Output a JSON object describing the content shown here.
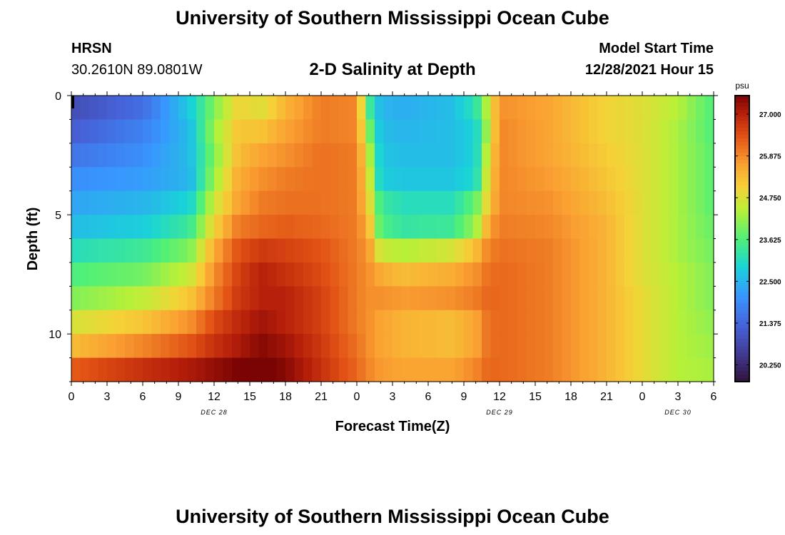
{
  "page": {
    "title": "University of Southern Mississippi Ocean Cube",
    "title_repeat": "University of Southern Mississippi Ocean Cube",
    "station_name": "HRSN",
    "station_coords": "30.2610N  89.0801W",
    "subtitle": "2-D Salinity at Depth",
    "model_start_label": "Model Start Time",
    "model_start_value": "12/28/2021 Hour 15"
  },
  "chart_data": {
    "type": "heatmap",
    "title": "2-D Salinity at Depth",
    "xlabel": "Forecast Time(Z)",
    "ylabel": "Depth (ft)",
    "x_ticks": [
      "0",
      "3",
      "6",
      "9",
      "12",
      "15",
      "18",
      "21",
      "0",
      "3",
      "6",
      "9",
      "12",
      "15",
      "18",
      "21",
      "0",
      "3",
      "6"
    ],
    "x_hours": [
      0,
      3,
      6,
      9,
      12,
      15,
      18,
      21,
      24,
      27,
      30,
      33,
      36,
      39,
      42,
      45,
      48,
      51,
      54
    ],
    "x_range_hours": [
      0,
      54
    ],
    "date_labels": [
      {
        "text": "DEC 28",
        "hour": 12
      },
      {
        "text": "DEC 29",
        "hour": 36
      },
      {
        "text": "DEC 30",
        "hour": 51
      }
    ],
    "y_ticks": [
      0,
      5,
      10
    ],
    "y_range_ft": [
      0,
      12
    ],
    "depth_levels_ft": [
      0.5,
      1.5,
      2.5,
      3.5,
      4.5,
      5.5,
      6.5,
      7.5,
      8.5,
      9.5,
      10.5,
      11.5
    ],
    "colorbar": {
      "unit": "psu",
      "ticks": [
        "27.000",
        "25.875",
        "24.750",
        "23.625",
        "22.500",
        "21.375",
        "20.250"
      ],
      "range": [
        19.8,
        27.5
      ]
    },
    "keyframes": {
      "hours": [
        0,
        6,
        10,
        12,
        14,
        16,
        18,
        21,
        24,
        25,
        26,
        28,
        32,
        34,
        35,
        36,
        40,
        45,
        48,
        51,
        54
      ],
      "rows": [
        [
          20.9,
          21.5,
          22.8,
          24.0,
          25.0,
          24.8,
          25.4,
          26.0,
          25.9,
          23.5,
          22.5,
          22.4,
          22.6,
          23.2,
          24.5,
          25.8,
          25.6,
          25.0,
          24.8,
          24.4,
          23.6
        ],
        [
          21.2,
          21.8,
          22.6,
          24.2,
          25.2,
          25.2,
          25.6,
          26.0,
          25.9,
          24.0,
          22.6,
          22.5,
          22.6,
          22.9,
          24.3,
          25.9,
          25.6,
          25.0,
          24.8,
          24.3,
          23.6
        ],
        [
          21.6,
          22.0,
          22.6,
          24.0,
          25.3,
          25.6,
          25.8,
          26.1,
          26.0,
          24.5,
          22.7,
          22.6,
          22.6,
          22.9,
          24.6,
          25.9,
          25.6,
          25.1,
          24.8,
          24.3,
          23.7
        ],
        [
          22.0,
          22.2,
          22.5,
          24.2,
          25.5,
          25.8,
          26.0,
          26.1,
          26.0,
          24.8,
          22.8,
          22.7,
          22.7,
          23.0,
          24.8,
          25.9,
          25.7,
          25.2,
          24.8,
          24.3,
          23.7
        ],
        [
          22.3,
          22.5,
          22.9,
          24.6,
          25.6,
          26.0,
          26.1,
          26.1,
          26.0,
          25.0,
          23.4,
          23.1,
          23.1,
          23.8,
          25.0,
          25.9,
          25.8,
          25.3,
          24.8,
          24.3,
          23.7
        ],
        [
          22.6,
          22.8,
          23.4,
          25.0,
          26.0,
          26.2,
          26.3,
          26.2,
          26.0,
          25.4,
          23.6,
          23.3,
          23.4,
          24.2,
          25.5,
          26.0,
          25.9,
          25.4,
          24.8,
          24.3,
          23.8
        ],
        [
          23.1,
          23.4,
          24.0,
          25.5,
          26.4,
          26.7,
          26.6,
          26.4,
          26.0,
          25.7,
          24.6,
          24.4,
          24.7,
          25.3,
          25.9,
          26.1,
          26.0,
          25.4,
          24.8,
          24.3,
          23.9
        ],
        [
          23.6,
          23.9,
          24.6,
          25.8,
          26.6,
          27.0,
          26.8,
          26.5,
          26.0,
          25.8,
          25.5,
          25.3,
          25.5,
          25.8,
          26.1,
          26.2,
          26.0,
          25.4,
          24.8,
          24.4,
          24.0
        ],
        [
          24.0,
          24.5,
          25.2,
          26.0,
          26.7,
          27.0,
          27.0,
          26.6,
          26.0,
          25.8,
          25.8,
          25.7,
          25.8,
          26.0,
          26.2,
          26.2,
          26.0,
          25.4,
          24.9,
          24.4,
          24.0
        ],
        [
          24.7,
          25.2,
          25.8,
          26.5,
          26.9,
          27.2,
          27.0,
          26.6,
          26.0,
          25.8,
          25.6,
          25.4,
          25.3,
          25.6,
          26.1,
          26.2,
          26.0,
          25.4,
          24.9,
          24.4,
          24.1
        ],
        [
          25.3,
          25.9,
          26.4,
          26.8,
          27.1,
          27.4,
          27.2,
          26.7,
          26.1,
          25.8,
          25.6,
          25.4,
          25.3,
          25.6,
          26.1,
          26.2,
          26.0,
          25.4,
          24.9,
          24.4,
          24.2
        ],
        [
          26.3,
          26.8,
          27.1,
          27.3,
          27.5,
          27.6,
          27.4,
          26.8,
          26.2,
          25.9,
          25.7,
          25.6,
          25.6,
          25.9,
          26.2,
          26.2,
          26.0,
          25.4,
          24.9,
          24.4,
          24.3
        ]
      ]
    }
  }
}
